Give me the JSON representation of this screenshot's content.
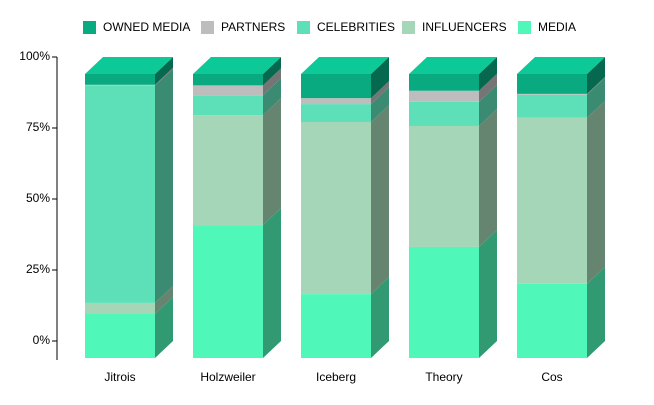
{
  "chart_data": {
    "type": "stacked-bar-3d",
    "categories": [
      "Jitrois",
      "Holzweiler",
      "Iceberg",
      "Theory",
      "Cos"
    ],
    "series": [
      {
        "name": "OWNED MEDIA",
        "color": "#0aaa80",
        "values": [
          3.8,
          4.0,
          8.5,
          5.9,
          7.0
        ]
      },
      {
        "name": "PARTNERS",
        "color": "#bdbdbd",
        "values": [
          0.3,
          3.5,
          2.1,
          3.9,
          0.3
        ]
      },
      {
        "name": "CELEBRITIES",
        "color": "#5de0b8",
        "values": [
          76.5,
          7.0,
          6.3,
          8.5,
          8.1
        ]
      },
      {
        "name": "INFLUENCERS",
        "color": "#a4d6b7",
        "values": [
          3.9,
          38.7,
          60.6,
          42.6,
          58.5
        ]
      },
      {
        "name": "MEDIA",
        "color": "#4ff8b8",
        "values": [
          15.5,
          46.8,
          22.5,
          39.1,
          26.1
        ]
      }
    ],
    "ylim": [
      0,
      100
    ],
    "yticks": [
      {
        "value": 0,
        "label": "0%"
      },
      {
        "value": 25,
        "label": "25%"
      },
      {
        "value": 50,
        "label": "50%"
      },
      {
        "value": 75,
        "label": "75%"
      },
      {
        "value": 100,
        "label": "100%"
      }
    ]
  }
}
